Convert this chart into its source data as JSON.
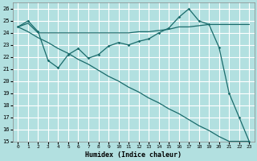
{
  "xlabel": "Humidex (Indice chaleur)",
  "background_color": "#b2e0e0",
  "grid_color": "#ffffff",
  "line_color": "#1a6b6b",
  "xlim": [
    -0.5,
    23.5
  ],
  "ylim": [
    15,
    26.5
  ],
  "yticks": [
    15,
    16,
    17,
    18,
    19,
    20,
    21,
    22,
    23,
    24,
    25,
    26
  ],
  "xticks": [
    0,
    1,
    2,
    3,
    4,
    5,
    6,
    7,
    8,
    9,
    10,
    11,
    12,
    13,
    14,
    15,
    16,
    17,
    18,
    19,
    20,
    21,
    22,
    23
  ],
  "line1_x": [
    0,
    1,
    2,
    3,
    4,
    5,
    6,
    7,
    8,
    9,
    10,
    11,
    12,
    13,
    14,
    15,
    16,
    17,
    18,
    19,
    20,
    21,
    22,
    23
  ],
  "line1_y": [
    24.5,
    25.0,
    24.1,
    21.7,
    21.1,
    22.2,
    22.7,
    21.9,
    22.2,
    22.9,
    23.2,
    23.0,
    23.3,
    23.5,
    24.0,
    24.4,
    25.3,
    26.0,
    25.0,
    24.7,
    22.8,
    19.0,
    17.0,
    15.0
  ],
  "line2_x": [
    0,
    1,
    2,
    3,
    4,
    5,
    6,
    7,
    8,
    9,
    10,
    11,
    12,
    13,
    14,
    15,
    16,
    17,
    18,
    19,
    20,
    21,
    22,
    23
  ],
  "line2_y": [
    24.5,
    24.8,
    24.0,
    24.0,
    24.0,
    24.0,
    24.0,
    24.0,
    24.0,
    24.0,
    24.0,
    24.0,
    24.1,
    24.1,
    24.2,
    24.3,
    24.5,
    24.5,
    24.6,
    24.7,
    24.7,
    24.7,
    24.7,
    24.7
  ],
  "line3_x": [
    0,
    1,
    2,
    3,
    4,
    5,
    6,
    7,
    8,
    9,
    10,
    11,
    12,
    13,
    14,
    15,
    16,
    17,
    18,
    19,
    20,
    21,
    22,
    23
  ],
  "line3_y": [
    24.5,
    24.1,
    23.6,
    23.2,
    22.7,
    22.3,
    21.8,
    21.4,
    20.9,
    20.4,
    20.0,
    19.5,
    19.1,
    18.6,
    18.2,
    17.7,
    17.3,
    16.8,
    16.3,
    15.9,
    15.4,
    15.0,
    15.0,
    15.0
  ]
}
